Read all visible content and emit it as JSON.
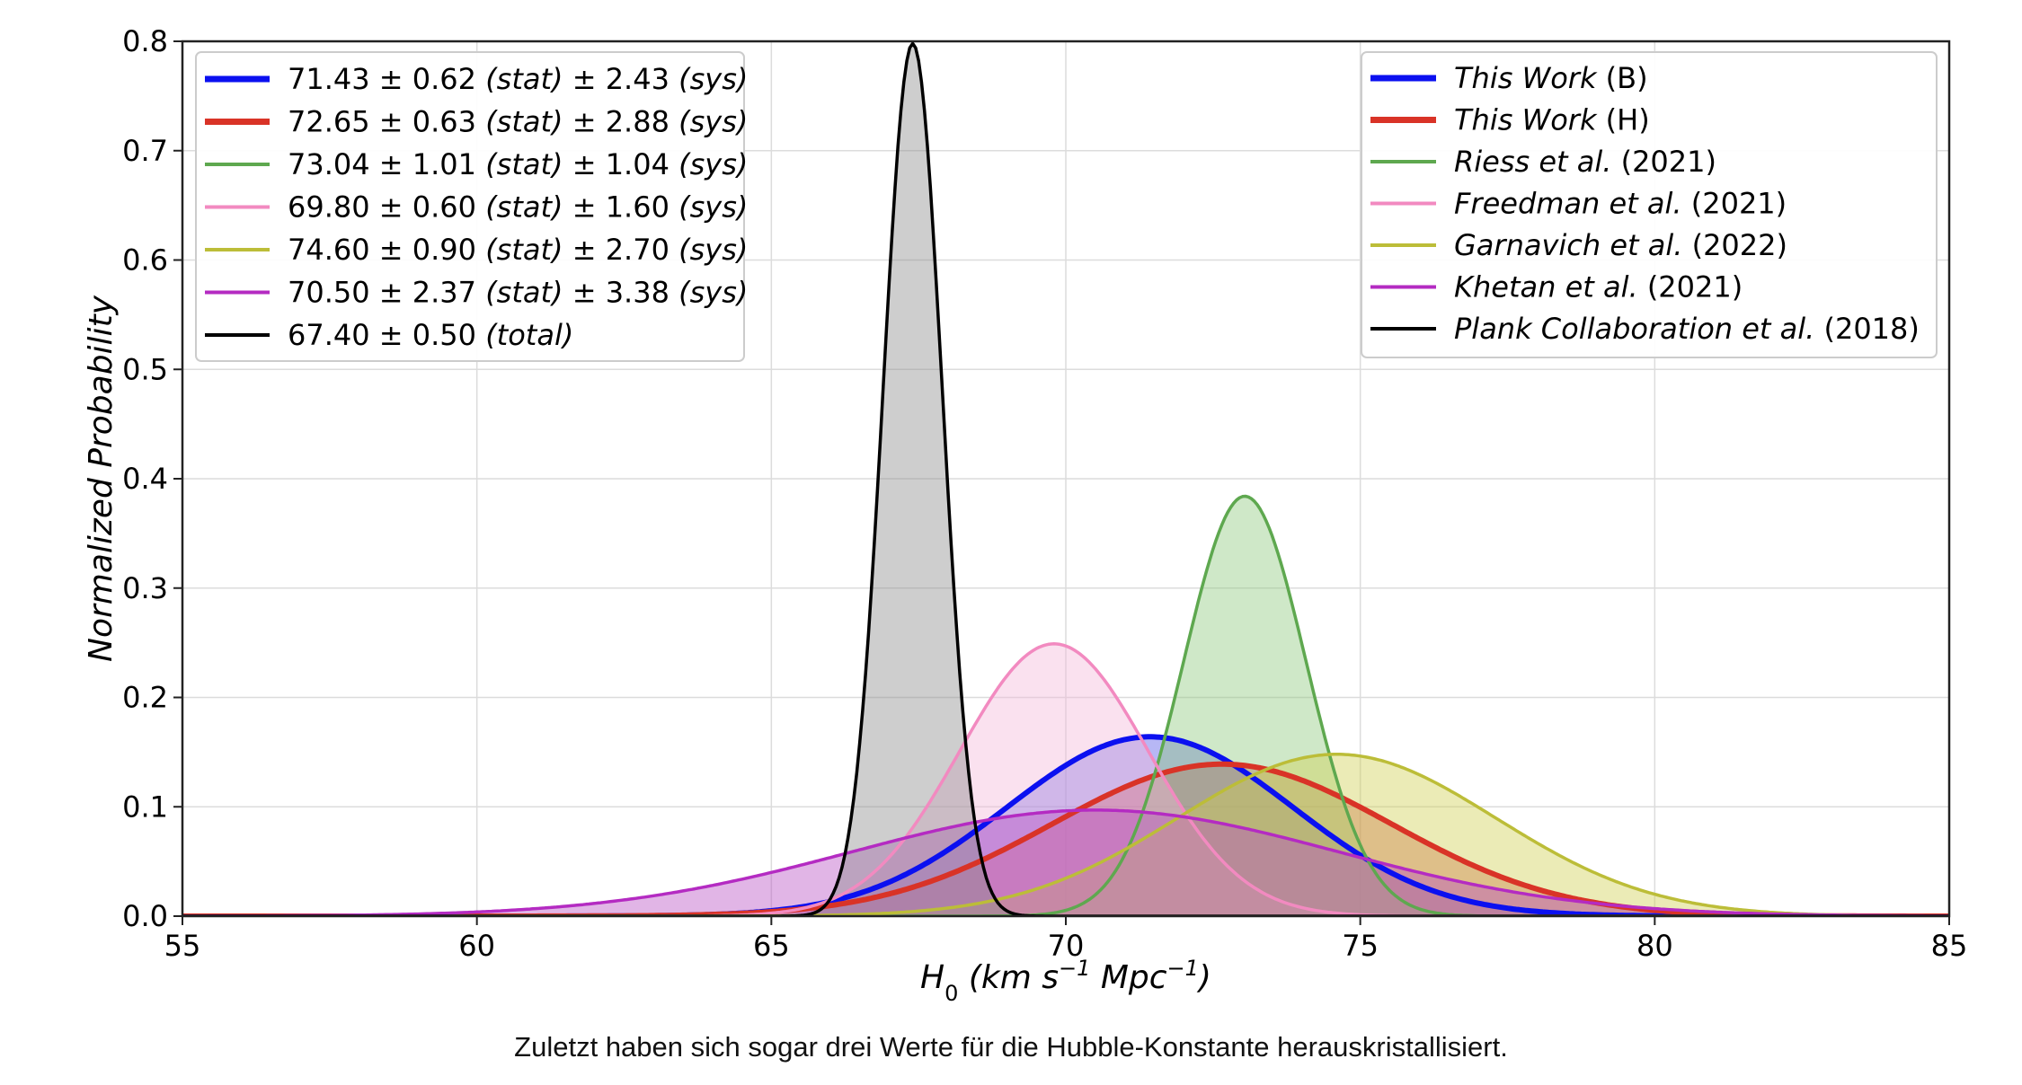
{
  "caption": "Zuletzt haben sich sogar drei Werte für die Hubble-Konstante herauskristallisiert.",
  "chart_data": {
    "type": "line",
    "subtype": "normalized gaussian probability distributions (filled area under each curve)",
    "xlabel": "H0 (km s^-1 Mpc^-1)",
    "xlabel_parts": {
      "main": "H",
      "sub": "0",
      "rest": " (km s",
      "sup1": "−1",
      "mid": " Mpc",
      "sup2": "−1",
      "end": ")"
    },
    "ylabel": "Normalized Probability",
    "xlim": [
      55,
      85
    ],
    "ylim": [
      0.0,
      0.8
    ],
    "xticks": [
      "55",
      "60",
      "65",
      "70",
      "75",
      "80",
      "85"
    ],
    "yticks": [
      "0.0",
      "0.1",
      "0.2",
      "0.3",
      "0.4",
      "0.5",
      "0.6",
      "0.7",
      "0.8"
    ],
    "grid": true,
    "series": [
      {
        "name": "This Work (B)",
        "name_parts": [
          "This Work ",
          "(B)"
        ],
        "label": "71.43 ± 0.62 (stat) ± 2.43 (sys)",
        "label_parts": {
          "value": "71.43 ± 0.62 ",
          "stat": "(stat)",
          "pm": " ± 2.43 ",
          "sys": "(sys)"
        },
        "color": "#0b10f0",
        "fill": "#5353e6",
        "mean": 71.43,
        "sigma": 2.43,
        "peak": 0.164,
        "line_weight": "thick"
      },
      {
        "name": "This Work (H)",
        "name_parts": [
          "This Work ",
          "(H)"
        ],
        "label": "72.65 ± 0.63 (stat) ± 2.88 (sys)",
        "label_parts": {
          "value": "72.65 ± 0.63 ",
          "stat": "(stat)",
          "pm": " ± 2.88 ",
          "sys": "(sys)"
        },
        "color": "#d93327",
        "fill": "#c84a44",
        "mean": 72.65,
        "sigma": 2.88,
        "peak": 0.139,
        "line_weight": "thick"
      },
      {
        "name": "Riess et al. (2021)",
        "name_parts": [
          "Riess et al.",
          " (2021)"
        ],
        "label": "73.04 ± 1.01 (stat) ± 1.04 (sys)",
        "label_parts": {
          "value": "73.04 ± 1.01 ",
          "stat": "(stat)",
          "pm": " ± 1.04 ",
          "sys": "(sys)"
        },
        "color": "#5ea84f",
        "fill": "#8cc97c",
        "mean": 73.04,
        "sigma": 1.04,
        "peak": 0.384,
        "line_weight": "normal"
      },
      {
        "name": "Freedman et al. (2021)",
        "name_parts": [
          "Freedman et al.",
          " (2021)"
        ],
        "label": "69.80 ± 0.60 (stat) ± 1.60 (sys)",
        "label_parts": {
          "value": "69.80 ± 0.60 ",
          "stat": "(stat)",
          "pm": " ± 1.60 ",
          "sys": "(sys)"
        },
        "color": "#f28ac0",
        "fill": "#f2b8d8",
        "mean": 69.8,
        "sigma": 1.6,
        "peak": 0.249,
        "line_weight": "normal"
      },
      {
        "name": "Garnavich et al. (2022)",
        "name_parts": [
          "Garnavich et al.",
          " (2022)"
        ],
        "label": "74.60 ± 0.90 (stat) ± 2.70 (sys)",
        "label_parts": {
          "value": "74.60 ± 0.90 ",
          "stat": "(stat)",
          "pm": " ± 2.70 ",
          "sys": "(sys)"
        },
        "color": "#bcbd38",
        "fill": "#cfcf52",
        "mean": 74.6,
        "sigma": 2.7,
        "peak": 0.148,
        "line_weight": "normal"
      },
      {
        "name": "Khetan et al. (2021)",
        "name_parts": [
          "Khetan et al.",
          " (2021)"
        ],
        "label": "70.50 ± 2.37 (stat) ± 3.38 (sys)",
        "label_parts": {
          "value": "70.50 ± 2.37 ",
          "stat": "(stat)",
          "pm": " ± 3.38 ",
          "sys": "(sys)"
        },
        "color": "#b42bc2",
        "fill": "#b84ec4",
        "mean": 70.5,
        "sigma": 4.13,
        "peak": 0.097,
        "line_weight": "normal"
      },
      {
        "name": "Plank Collaboration et al. (2018)",
        "name_parts": [
          "Plank Collaboration et al.",
          " (2018)"
        ],
        "label": "67.40 ± 0.50 (total)",
        "label_parts": {
          "value": "67.40 ± 0.50 ",
          "total": "(total)"
        },
        "color": "#000000",
        "fill": "#8a8a8a",
        "mean": 67.4,
        "sigma": 0.5,
        "peak": 0.798,
        "line_weight": "normal"
      }
    ],
    "legends": [
      {
        "placement": "top-left",
        "content": "measurement values"
      },
      {
        "placement": "top-right",
        "content": "source names"
      }
    ]
  }
}
